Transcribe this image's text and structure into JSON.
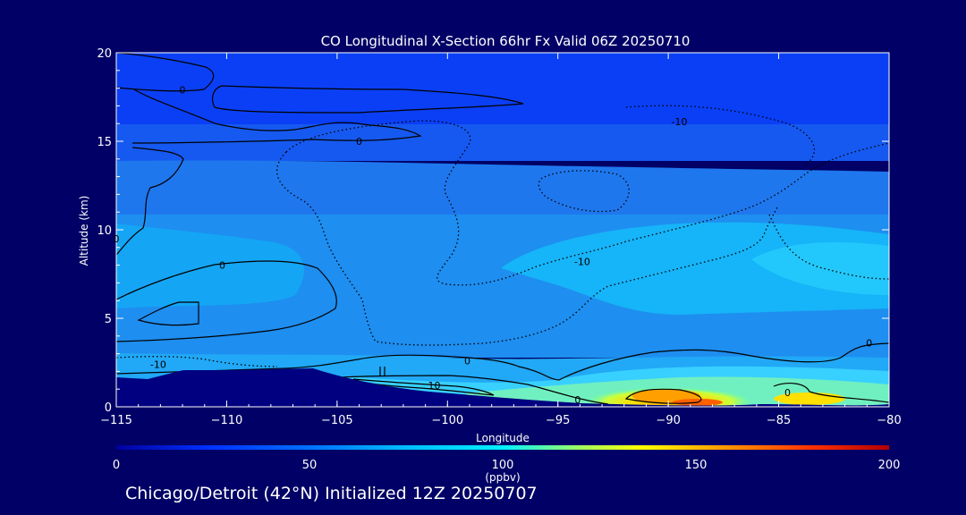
{
  "chart_data": {
    "type": "heatmap",
    "title": "CO Longitudinal X-Section 66hr  Fx Valid 06Z 20250710",
    "xlabel": "Longitude",
    "ylabel": "Altitude (km)",
    "xlim": [
      -115,
      -80
    ],
    "ylim": [
      0,
      20
    ],
    "x_ticks": [
      "−115",
      "−110",
      "−105",
      "−100",
      "−95",
      "−90",
      "−85",
      "−80"
    ],
    "y_ticks": [
      "0",
      "5",
      "10",
      "15",
      "20"
    ],
    "colorbar": {
      "label": "(ppbv)",
      "range": [
        0,
        200
      ],
      "ticks": [
        "0",
        "50",
        "100",
        "150",
        "200"
      ]
    },
    "fill_levels": [
      {
        "altitude_km": [
          17,
          20
        ],
        "co_ppbv": 35
      },
      {
        "altitude_km": [
          14,
          17
        ],
        "co_ppbv": 45
      },
      {
        "altitude_km": [
          10,
          14
        ],
        "co_ppbv": 55
      },
      {
        "altitude_km": [
          4,
          10
        ],
        "co_ppbv": 65
      },
      {
        "altitude_km": [
          1,
          4
        ],
        "co_ppbv": 75
      },
      {
        "altitude_km": [
          0,
          1
        ],
        "co_ppbv": 95
      }
    ],
    "surface_maximum": {
      "longitude": -90,
      "altitude_km": 0.5,
      "co_ppbv": 150
    },
    "contour_labels": [
      {
        "text": "0",
        "longitude": -112,
        "altitude_km": 17.9
      },
      {
        "text": "0",
        "longitude": -104,
        "altitude_km": 15
      },
      {
        "text": "-10",
        "longitude": -89.5,
        "altitude_km": 16.1
      },
      {
        "text": "0",
        "longitude": -115,
        "altitude_km": 9.5
      },
      {
        "text": "0",
        "longitude": -110.2,
        "altitude_km": 8
      },
      {
        "text": "-10",
        "longitude": -93.9,
        "altitude_km": 8.2
      },
      {
        "text": "-10",
        "longitude": -113.1,
        "altitude_km": 2.4
      },
      {
        "text": "0",
        "longitude": -99.1,
        "altitude_km": 2.6
      },
      {
        "text": "10",
        "longitude": -100.6,
        "altitude_km": 1.2
      },
      {
        "text": "0",
        "longitude": -94.1,
        "altitude_km": 0.4
      },
      {
        "text": "0",
        "longitude": -84.6,
        "altitude_km": 0.8
      },
      {
        "text": "0",
        "longitude": -80.9,
        "altitude_km": 3.6
      }
    ]
  },
  "footer_text": "Chicago/Detroit (42°N) Initialized 12Z 20250707",
  "colors": {
    "background": "#000066",
    "terrain": "#000080",
    "contour": "#000000",
    "colorbar_stops": [
      "#0000a0",
      "#0030ff",
      "#00a0ff",
      "#00f0ff",
      "#a0ff60",
      "#ffff00",
      "#ffa000",
      "#ff3000",
      "#b00000"
    ]
  }
}
